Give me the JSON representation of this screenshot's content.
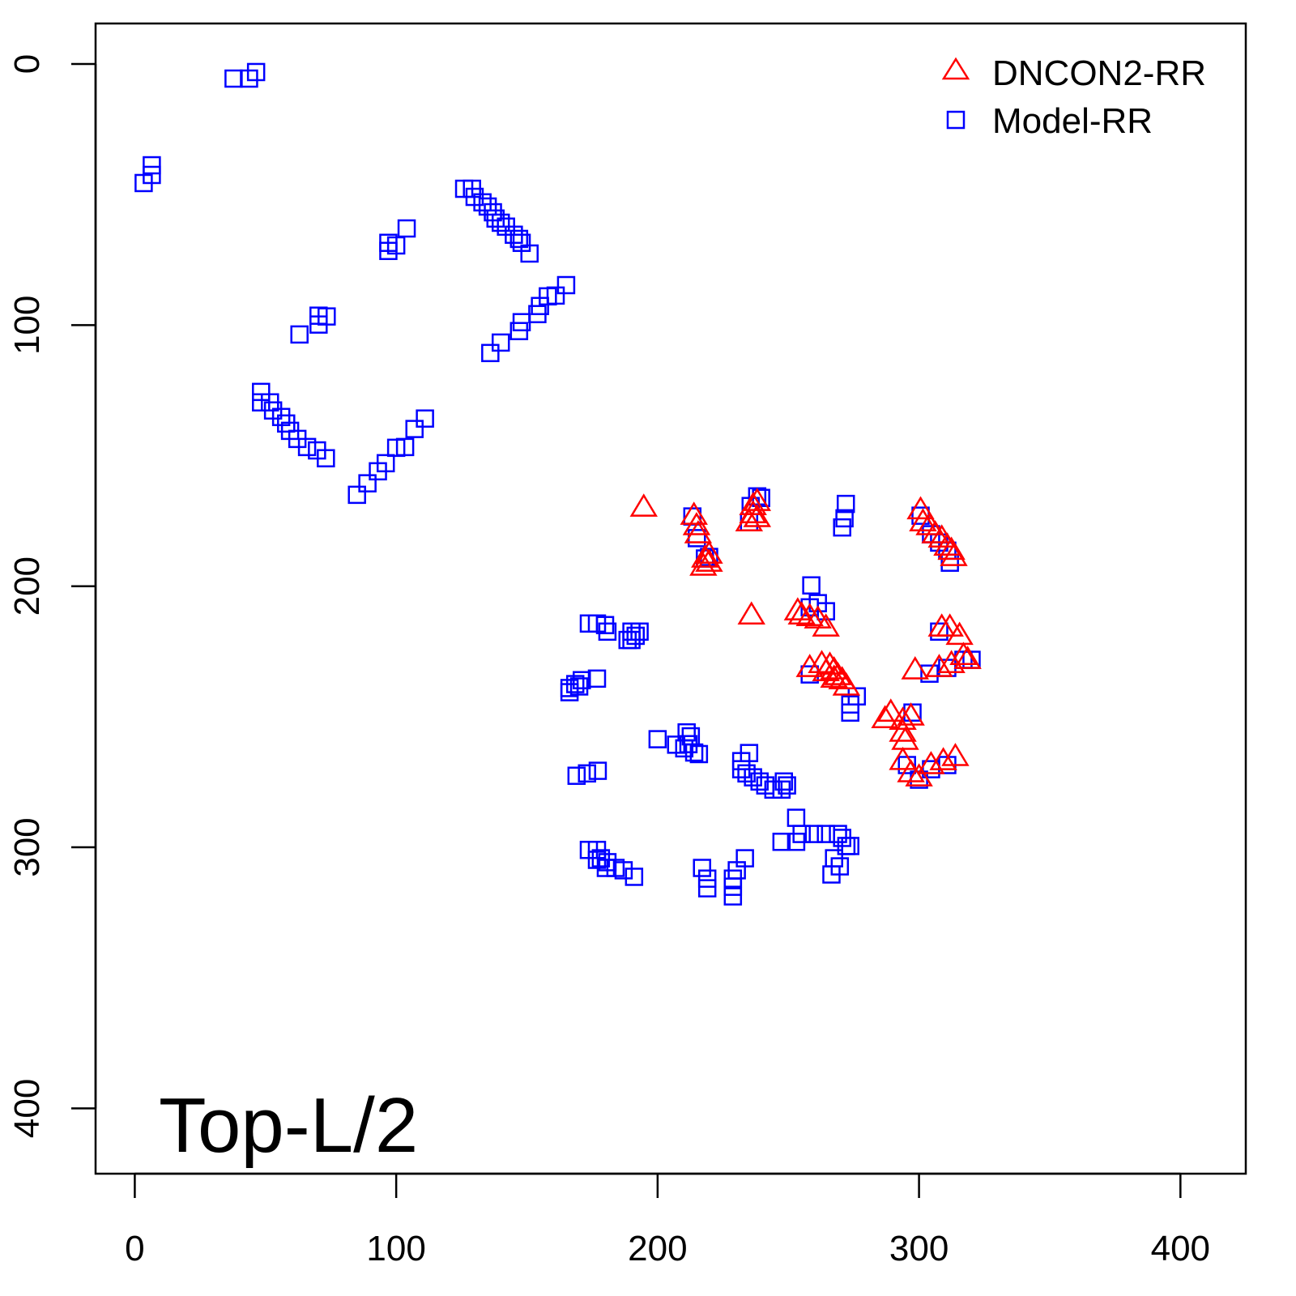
{
  "chart_data": {
    "type": "scatter",
    "title": "",
    "xlabel": "",
    "ylabel": "",
    "xlim": [
      -15,
      425
    ],
    "ylim": [
      -15.5,
      425
    ],
    "y_inverted": true,
    "grid": false,
    "x_ticks": [
      0,
      100,
      200,
      300,
      400
    ],
    "y_ticks": [
      0,
      100,
      200,
      300,
      400
    ],
    "x_tick_labels": [
      "0",
      "100",
      "200",
      "300",
      "400"
    ],
    "y_tick_labels": [
      "0",
      "100",
      "200",
      "300",
      "400"
    ],
    "annotation": "Top-L/2",
    "legend": {
      "placement": "top-right",
      "entries": [
        "DNCON2-RR",
        "Model-RR"
      ]
    },
    "series": [
      {
        "name": "Model-RR",
        "marker": "square-open",
        "color": "#0000ff",
        "points": [
          [
            37.8,
            5.6
          ],
          [
            43.7,
            5.6
          ],
          [
            46.4,
            3.1
          ],
          [
            3.4,
            45.6
          ],
          [
            6.5,
            42.5
          ],
          [
            6.5,
            38.8
          ],
          [
            97,
            71.6
          ],
          [
            100,
            69.5
          ],
          [
            104,
            63
          ],
          [
            97,
            68.5
          ],
          [
            126,
            47.8
          ],
          [
            129,
            47.8
          ],
          [
            130,
            50.9
          ],
          [
            133,
            53
          ],
          [
            135,
            54.6
          ],
          [
            137,
            56.8
          ],
          [
            138,
            59.2
          ],
          [
            140,
            60.8
          ],
          [
            142,
            62.3
          ],
          [
            145,
            65.4
          ],
          [
            147,
            67
          ],
          [
            148,
            68.5
          ],
          [
            151,
            72.6
          ],
          [
            136,
            110.7
          ],
          [
            140,
            106.7
          ],
          [
            147,
            102.3
          ],
          [
            148,
            98.9
          ],
          [
            154,
            95.8
          ],
          [
            155,
            92.7
          ],
          [
            158,
            89
          ],
          [
            161,
            88.7
          ],
          [
            165,
            84.7
          ],
          [
            63,
            103.6
          ],
          [
            70.3,
            99.8
          ],
          [
            73.4,
            96.7
          ],
          [
            70.3,
            96.4
          ],
          [
            48.3,
            125.6
          ],
          [
            48.3,
            129.6
          ],
          [
            51.7,
            129.6
          ],
          [
            52.9,
            132.7
          ],
          [
            56,
            135.2
          ],
          [
            57.9,
            137.7
          ],
          [
            59.4,
            140.5
          ],
          [
            62.2,
            143.6
          ],
          [
            65.9,
            146.7
          ],
          [
            69.7,
            148
          ],
          [
            73.1,
            151
          ],
          [
            85,
            165
          ],
          [
            89,
            160.6
          ],
          [
            93,
            156
          ],
          [
            96,
            152.9
          ],
          [
            100,
            147
          ],
          [
            103.4,
            146.7
          ],
          [
            107,
            139.8
          ],
          [
            111,
            135.8
          ],
          [
            173.7,
            214.3
          ],
          [
            176.8,
            214.3
          ],
          [
            179.9,
            214.9
          ],
          [
            180.8,
            217.4
          ],
          [
            190,
            217.4
          ],
          [
            191.6,
            219
          ],
          [
            188.5,
            220.6
          ],
          [
            190,
            220.6
          ],
          [
            193.1,
            217.4
          ],
          [
            166.3,
            240.6
          ],
          [
            168.5,
            237.5
          ],
          [
            171,
            236
          ],
          [
            176.8,
            235.4
          ],
          [
            166.3,
            239
          ],
          [
            170,
            238.4
          ],
          [
            200,
            258.6
          ],
          [
            207.1,
            260.7
          ],
          [
            211.1,
            256
          ],
          [
            212.7,
            257.5
          ],
          [
            214,
            263.7
          ],
          [
            215.8,
            264.3
          ],
          [
            210.2,
            262.1
          ],
          [
            211.8,
            260.5
          ],
          [
            235,
            263.9
          ],
          [
            232,
            267
          ],
          [
            232,
            270.1
          ],
          [
            234,
            271.7
          ],
          [
            236.5,
            273.2
          ],
          [
            239,
            274.8
          ],
          [
            241.2,
            276.3
          ],
          [
            244.3,
            277.9
          ],
          [
            247.4,
            277.9
          ],
          [
            249.5,
            276.3
          ],
          [
            248.3,
            274.8
          ],
          [
            169,
            272.6
          ],
          [
            173,
            271.7
          ],
          [
            177.1,
            270.7
          ],
          [
            173.7,
            301
          ],
          [
            176.8,
            301
          ],
          [
            178.3,
            304.2
          ],
          [
            180.8,
            305.7
          ],
          [
            183.9,
            307.9
          ],
          [
            187,
            308.8
          ],
          [
            191,
            311.3
          ],
          [
            176.8,
            304.8
          ],
          [
            180.2,
            307.9
          ],
          [
            217,
            307.9
          ],
          [
            219,
            312
          ],
          [
            219,
            315.7
          ],
          [
            228.8,
            312
          ],
          [
            230.3,
            308.8
          ],
          [
            233.4,
            304.2
          ],
          [
            228.8,
            315.1
          ],
          [
            228.8,
            318.8
          ],
          [
            253,
            288.7
          ],
          [
            247.4,
            297.9
          ],
          [
            253,
            297.9
          ],
          [
            255.1,
            294.9
          ],
          [
            259.8,
            294.9
          ],
          [
            264.4,
            294.9
          ],
          [
            269,
            294.9
          ],
          [
            270.6,
            296.4
          ],
          [
            272.2,
            299.5
          ],
          [
            273.7,
            299.5
          ],
          [
            267.5,
            304.2
          ],
          [
            266.5,
            310.4
          ],
          [
            269.7,
            307.3
          ],
          [
            213.3,
            173.3
          ],
          [
            215,
            181.6
          ],
          [
            218.1,
            189.4
          ],
          [
            219.7,
            188.8
          ],
          [
            239.6,
            166.2
          ],
          [
            235.6,
            169.3
          ],
          [
            235,
            175.5
          ],
          [
            238.1,
            165.6
          ],
          [
            272,
            168.5
          ],
          [
            271.5,
            174
          ],
          [
            270.6,
            177.5
          ],
          [
            300.6,
            173
          ],
          [
            304.6,
            180.1
          ],
          [
            307.7,
            183.3
          ],
          [
            310.8,
            186.4
          ],
          [
            311.8,
            191
          ],
          [
            258.8,
            199.7
          ],
          [
            261.3,
            206.5
          ],
          [
            264.4,
            209.6
          ],
          [
            258.2,
            208.1
          ],
          [
            258.2,
            233.8
          ],
          [
            273.7,
            245.3
          ],
          [
            276.2,
            242.2
          ],
          [
            273.7,
            248.4
          ],
          [
            307.7,
            217.4
          ],
          [
            304,
            233.5
          ],
          [
            310.8,
            231.3
          ],
          [
            317,
            228.2
          ],
          [
            320.1,
            228.2
          ],
          [
            297.5,
            248.4
          ],
          [
            295.4,
            268.5
          ],
          [
            300,
            274.1
          ],
          [
            304.6,
            270.1
          ],
          [
            310.8,
            268.5
          ]
        ]
      },
      {
        "name": "DNCON2-RR",
        "marker": "triangle-open",
        "color": "#ff0000",
        "points": [
          [
            194.7,
            169.9
          ],
          [
            235.9,
            211.2
          ],
          [
            213.9,
            173
          ],
          [
            214.9,
            177
          ],
          [
            215.5,
            180.1
          ],
          [
            219.7,
            187.9
          ],
          [
            218.1,
            189.4
          ],
          [
            219.7,
            191
          ],
          [
            217.5,
            192.5
          ],
          [
            236.5,
            169.3
          ],
          [
            238.1,
            167.7
          ],
          [
            235,
            175.5
          ],
          [
            238.1,
            173.9
          ],
          [
            236.5,
            172.4
          ],
          [
            300.6,
            170.9
          ],
          [
            301.5,
            175.5
          ],
          [
            304,
            177
          ],
          [
            306.2,
            180.1
          ],
          [
            308.7,
            181.7
          ],
          [
            310.8,
            184.8
          ],
          [
            312.4,
            186.4
          ],
          [
            313.3,
            188.8
          ],
          [
            255.1,
            211.2
          ],
          [
            258.2,
            211.8
          ],
          [
            261.3,
            212.7
          ],
          [
            264.4,
            215.8
          ],
          [
            253.6,
            209.6
          ],
          [
            258.2,
            231.3
          ],
          [
            262.8,
            229.8
          ],
          [
            265.9,
            230.4
          ],
          [
            267.5,
            232.2
          ],
          [
            269,
            234.4
          ],
          [
            270.6,
            236
          ],
          [
            272.2,
            238.4
          ],
          [
            264.4,
            232.9
          ],
          [
            267.5,
            235.4
          ],
          [
            308.7,
            215.8
          ],
          [
            311.8,
            215.8
          ],
          [
            315.5,
            219
          ],
          [
            298.5,
            232.2
          ],
          [
            307.7,
            231.3
          ],
          [
            312.4,
            229.8
          ],
          [
            317,
            226.7
          ],
          [
            318.6,
            228.2
          ],
          [
            287,
            250.9
          ],
          [
            289.2,
            248.4
          ],
          [
            293.8,
            251.5
          ],
          [
            296.9,
            249.9
          ],
          [
            293.8,
            256.1
          ],
          [
            294.7,
            259.2
          ],
          [
            293.8,
            266.9
          ],
          [
            296.9,
            271.6
          ],
          [
            300,
            273.2
          ],
          [
            304.6,
            268.5
          ],
          [
            309.3,
            267
          ],
          [
            313.9,
            265.4
          ]
        ]
      }
    ]
  }
}
